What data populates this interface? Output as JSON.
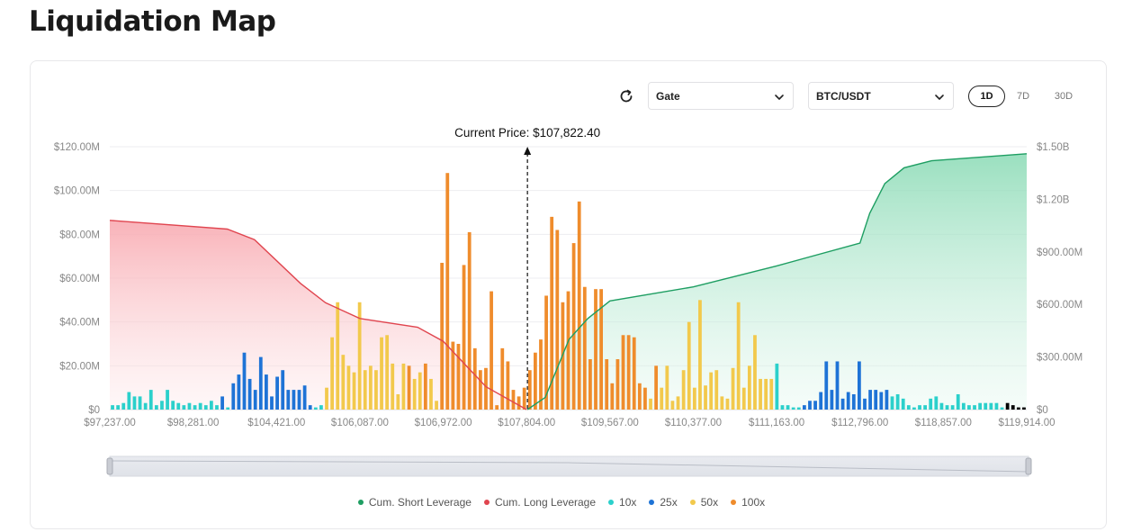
{
  "page": {
    "title": "Liquidation Map"
  },
  "controls": {
    "exchange": {
      "selected": "Gate"
    },
    "pair": {
      "selected": "BTC/USDT"
    },
    "ranges": [
      "1D",
      "7D",
      "30D"
    ],
    "active_range": "1D"
  },
  "colors": {
    "short": "#1e9e62",
    "short_fill": "#a7e3c7",
    "long": "#e0454f",
    "long_fill": "#f9b9bf",
    "10x": "#2bd0cb",
    "25x": "#1e73d6",
    "50x": "#f2c94c",
    "100x": "#ef8c2c"
  },
  "chart_data": {
    "type": "bar",
    "current_price_label": "Current Price: $107,822.40",
    "current_price": 107822.4,
    "x_tick_labels": [
      "$97,237.00",
      "$98,281.00",
      "$104,421.00",
      "$106,087.00",
      "$106,972.00",
      "$107,804.00",
      "$109,567.00",
      "$110,377.00",
      "$111,163.00",
      "$112,796.00",
      "$118,857.00",
      "$119,914.00"
    ],
    "y_left": {
      "min": 0,
      "max": 120000000,
      "ticks": [
        0,
        20000000,
        40000000,
        60000000,
        80000000,
        100000000,
        120000000
      ],
      "tick_labels": [
        "$0",
        "$20.00M",
        "$40.00M",
        "$60.00M",
        "$80.00M",
        "$100.00M",
        "$120.00M"
      ]
    },
    "y_right": {
      "min": 0,
      "max": 1500000000,
      "ticks": [
        0,
        300000000,
        600000000,
        900000000,
        1200000000,
        1500000000
      ],
      "tick_labels": [
        "$0",
        "$300.00M",
        "$600.00M",
        "$900.00M",
        "$1.20B",
        "$1.50B"
      ]
    },
    "grid": true,
    "legend_position": "bottom",
    "legend": [
      "Cum. Short Leverage",
      "Cum. Long Leverage",
      "10x",
      "25x",
      "50x",
      "100x"
    ],
    "bars": {
      "leverage": [
        "10x",
        "10x",
        "10x",
        "10x",
        "10x",
        "10x",
        "10x",
        "10x",
        "10x",
        "10x",
        "10x",
        "10x",
        "10x",
        "10x",
        "10x",
        "10x",
        "10x",
        "10x",
        "10x",
        "10x",
        "25x",
        "10x",
        "25x",
        "25x",
        "25x",
        "25x",
        "25x",
        "25x",
        "25x",
        "25x",
        "25x",
        "25x",
        "25x",
        "25x",
        "25x",
        "25x",
        "25x",
        "10x",
        "10x",
        "50x",
        "50x",
        "50x",
        "50x",
        "50x",
        "50x",
        "50x",
        "50x",
        "50x",
        "50x",
        "50x",
        "50x",
        "50x",
        "50x",
        "50x",
        "100x",
        "50x",
        "50x",
        "100x",
        "50x",
        "50x",
        "100x",
        "100x",
        "100x",
        "100x",
        "100x",
        "100x",
        "100x",
        "100x",
        "100x",
        "100x",
        "100x",
        "100x",
        "100x",
        "100x",
        "100x",
        "100x",
        "100x",
        "100x",
        "100x",
        "100x",
        "100x",
        "100x",
        "100x",
        "100x",
        "100x",
        "100x",
        "100x",
        "100x",
        "100x",
        "100x",
        "100x",
        "100x",
        "100x",
        "100x",
        "100x",
        "100x",
        "100x",
        "100x",
        "50x",
        "100x",
        "50x",
        "50x",
        "50x",
        "50x",
        "50x",
        "50x",
        "50x",
        "50x",
        "50x",
        "50x",
        "50x",
        "50x",
        "50x",
        "50x",
        "50x",
        "50x",
        "50x",
        "50x",
        "50x",
        "50x",
        "50x",
        "10x",
        "10x",
        "10x",
        "10x",
        "10x",
        "25x",
        "25x",
        "25x",
        "25x",
        "25x",
        "25x",
        "25x",
        "25x",
        "25x",
        "25x",
        "25x",
        "25x",
        "25x",
        "25x",
        "25x",
        "25x",
        "10x",
        "10x",
        "10x",
        "10x",
        "10x",
        "10x",
        "10x",
        "10x",
        "10x",
        "10x",
        "10x",
        "10x",
        "10x",
        "10x",
        "10x",
        "10x",
        "10x",
        "10x",
        "10x",
        "10x",
        "10x"
      ],
      "values": [
        2,
        2,
        3,
        8,
        6,
        6,
        3,
        9,
        2,
        4,
        9,
        4,
        3,
        2,
        3,
        2,
        3,
        2,
        4,
        2,
        6,
        1,
        12,
        16,
        26,
        14,
        9,
        24,
        16,
        6,
        15,
        18,
        9,
        9,
        9,
        11,
        2,
        1,
        2,
        10,
        33,
        49,
        25,
        20,
        17,
        49,
        18,
        20,
        18,
        33,
        34,
        21,
        7,
        21,
        20,
        14,
        17,
        21,
        14,
        4,
        67,
        108,
        31,
        30,
        66,
        81,
        28,
        18,
        19,
        54,
        2,
        28,
        22,
        9,
        6,
        10,
        18,
        26,
        32,
        52,
        88,
        82,
        49,
        54,
        76,
        95,
        56,
        23,
        55,
        55,
        23,
        12,
        23,
        34,
        34,
        33,
        12,
        10,
        5,
        20,
        10,
        20,
        4,
        6,
        18,
        40,
        10,
        50,
        11,
        17,
        18,
        6,
        5,
        19,
        49,
        10,
        20,
        34,
        14,
        14,
        14,
        21,
        2,
        2,
        1,
        1,
        2,
        4,
        4,
        8,
        22,
        9,
        22,
        5,
        8,
        7,
        22,
        5,
        9,
        9,
        8,
        9,
        6,
        7,
        5,
        2,
        1,
        2,
        2,
        5,
        6,
        3,
        2,
        2,
        7,
        3,
        2,
        2,
        3,
        3,
        3,
        3,
        1,
        3,
        2,
        1,
        1
      ]
    },
    "cum_long": {
      "x": [
        97237,
        100800,
        102800,
        104900,
        105400,
        106087,
        106700,
        106972,
        107400,
        107804
      ],
      "values": [
        1080000000,
        1030000000,
        970000000,
        720000000,
        610000000,
        520000000,
        470000000,
        390000000,
        130000000,
        0
      ]
    },
    "cum_short": {
      "x": [
        107822.4,
        108200,
        108700,
        109100,
        109567,
        110377,
        111163,
        112796,
        113500,
        114600,
        116000,
        118000,
        119914
      ],
      "values": [
        0,
        70000000,
        400000000,
        520000000,
        620000000,
        700000000,
        820000000,
        950000000,
        1120000000,
        1290000000,
        1380000000,
        1420000000,
        1460000000
      ]
    }
  },
  "legend": {
    "items": [
      {
        "label": "Cum. Short Leverage",
        "color": "#1e9e62"
      },
      {
        "label": "Cum. Long Leverage",
        "color": "#e0454f"
      },
      {
        "label": "10x",
        "color": "#2bd0cb"
      },
      {
        "label": "25x",
        "color": "#1e73d6"
      },
      {
        "label": "50x",
        "color": "#f2c94c"
      },
      {
        "label": "100x",
        "color": "#ef8c2c"
      }
    ]
  }
}
